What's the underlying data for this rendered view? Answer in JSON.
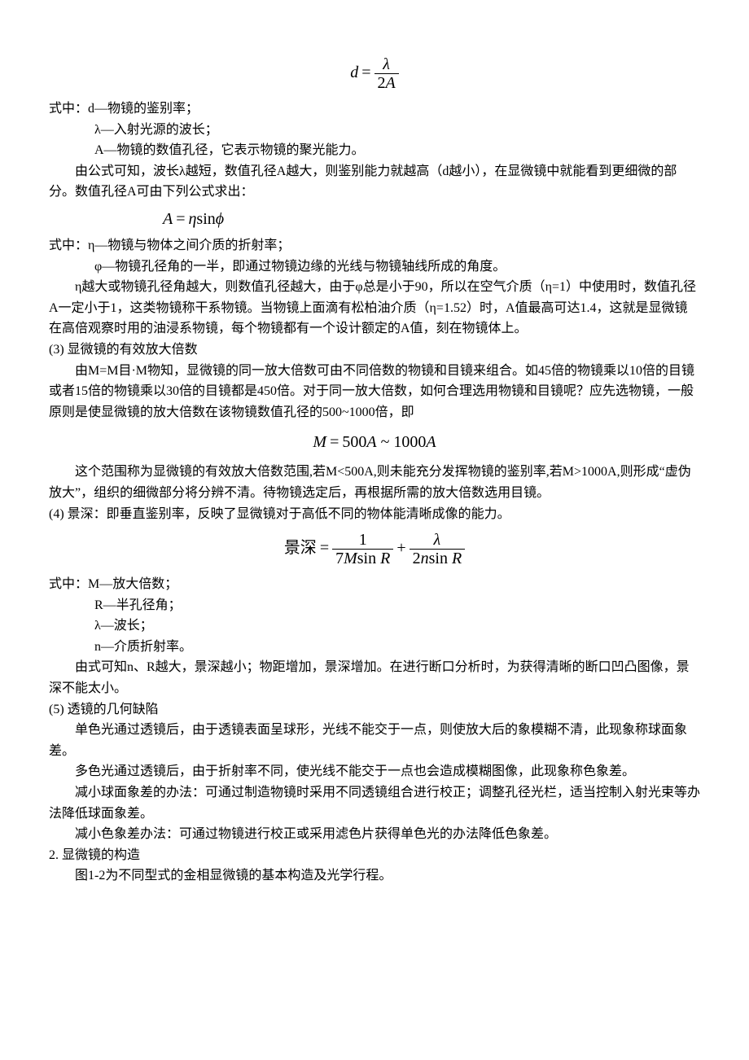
{
  "formula1_html": "<span>d</span><span class='eq'>=</span><span class='frac'><span class='num'>λ</span><span class='den'><span class='upright'>2</span>A</span></span>",
  "def_block1": {
    "l1": "式中：d—物镜的鉴别率；",
    "l2": "λ—入射光源的波长；",
    "l3": "A—物镜的数值孔径，它表示物镜的聚光能力。"
  },
  "p1": "由公式可知，波长λ越短，数值孔径A越大，则鉴别能力就越高（d越小），在显微镜中就能看到更细微的部分。数值孔径A可由下列公式求出：",
  "formula2_html": "<span>A</span><span class='eq'>=</span><span>η</span><span class='upright'>sin</span><span>ϕ</span>",
  "def_block2": {
    "l1": "式中：η—物镜与物体之间介质的折射率；",
    "l2": "φ—物镜孔径角的一半，即通过物镜边缘的光线与物镜轴线所成的角度。"
  },
  "p2": "η越大或物镜孔径角越大，则数值孔径越大，由于φ总是小于90，所以在空气介质（η=1）中使用时，数值孔径A一定小于1，这类物镜称干系物镜。当物镜上面滴有松柏油介质（η=1.52）时，A值最高可达1.4，这就是显微镜在高倍观察时用的油浸系物镜，每个物镜都有一个设计额定的A值，刻在物镜体上。",
  "h3": "(3) 显微镜的有效放大倍数",
  "p3": "由M=M目·M物知，显微镜的同一放大倍数可由不同倍数的物镜和目镜来组合。如45倍的物镜乘以10倍的目镜或者15倍的物镜乘以30倍的目镜都是450倍。对于同一放大倍数，如何合理选用物镜和目镜呢？应先选物镜，一般原则是使显微镜的放大倍数在该物镜数值孔径的500~1000倍，即",
  "formula3_html": "<span>M</span><span class='eq'>=</span><span class='upright'>500</span><span>A</span><span class='upright'> ~ 1000</span><span>A</span>",
  "p4": "这个范围称为显微镜的有效放大倍数范围,若M<500A,则未能充分发挥物镜的鉴别率,若M>1000A,则形成“虚伪放大”，组织的细微部分将分辨不清。待物镜选定后，再根据所需的放大倍数选用目镜。",
  "h4": "(4) 景深：即垂直鉴别率，反映了显微镜对于高低不同的物体能清晰成像的能力。",
  "formula4_label": "景深",
  "formula4_html": "<span class='eq'>=</span><span class='frac'><span class='num'><span class='upright'>1</span></span><span class='den'><span class='upright'>7</span>M<span class='upright'>sin</span> R</span></span><span class='plus'>+</span><span class='frac'><span class='num'>λ</span><span class='den'><span class='upright'>2</span>n<span class='upright'>sin</span> R</span></span>",
  "def_block4": {
    "l1": "式中：M—放大倍数；",
    "l2": "R—半孔径角；",
    "l3": "λ—波长；",
    "l4": "n—介质折射率。"
  },
  "p5": "由式可知n、R越大，景深越小；物距增加，景深增加。在进行断口分析时，为获得清晰的断口凹凸图像，景深不能太小。",
  "h5": "(5) 透镜的几何缺陷",
  "p6": "单色光通过透镜后，由于透镜表面呈球形，光线不能交于一点，则使放大后的象模糊不清，此现象称球面象差。",
  "p7": "多色光通过透镜后，由于折射率不同，使光线不能交于一点也会造成模糊图像，此现象称色象差。",
  "p8": "减小球面象差的办法：可通过制造物镜时采用不同透镜组合进行校正；调整孔径光栏，适当控制入射光束等办法降低球面象差。",
  "p9": "减小色象差办法：可通过物镜进行校正或采用滤色片获得单色光的办法降低色象差。",
  "h2": "2. 显微镜的构造",
  "p10": "图1-2为不同型式的金相显微镜的基本构造及光学行程。"
}
